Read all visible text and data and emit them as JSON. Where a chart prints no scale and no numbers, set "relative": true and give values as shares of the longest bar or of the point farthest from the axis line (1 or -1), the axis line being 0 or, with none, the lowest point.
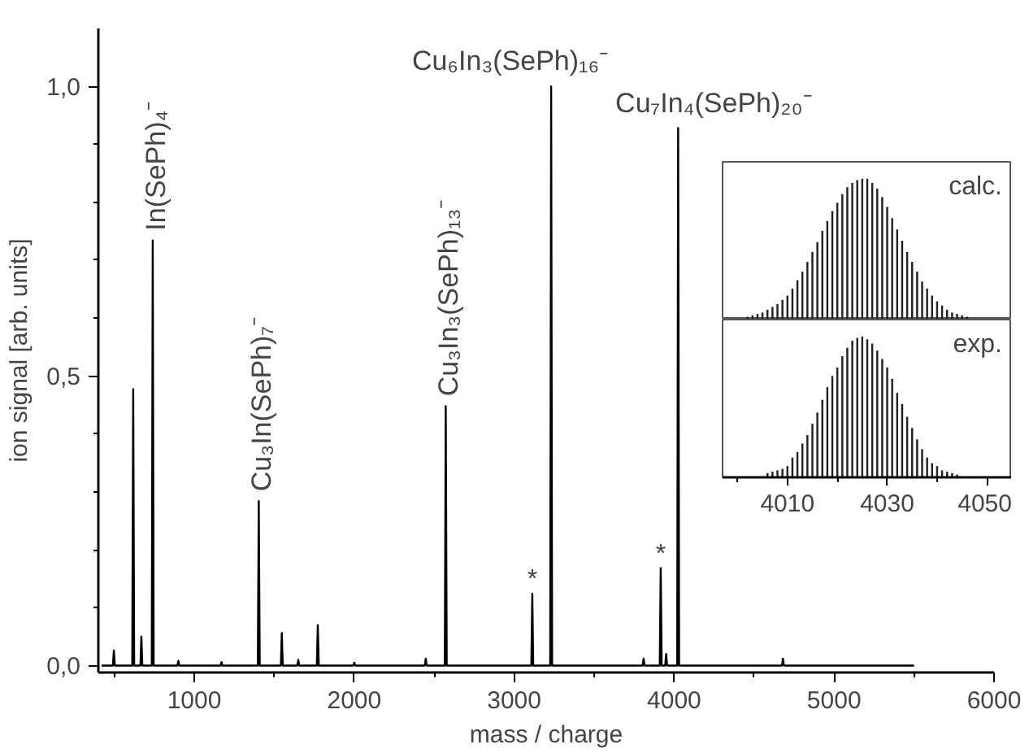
{
  "chart_data": [
    {
      "type": "line",
      "xlabel": "mass / charge",
      "ylabel": "ion signal [arb. units]",
      "xlim": [
        400,
        6000
      ],
      "ylim": [
        -0.012,
        1.1
      ],
      "xticks": [
        1000,
        2000,
        3000,
        4000,
        5000,
        6000,
        {
          "value": 500,
          "label": null
        },
        {
          "value": 1500,
          "label": null
        },
        {
          "value": 2500,
          "label": null
        },
        {
          "value": 3500,
          "label": null
        },
        {
          "value": 4500,
          "label": null
        },
        {
          "value": 5500,
          "label": null
        }
      ],
      "yticks": [
        {
          "value": 0,
          "label": "0,0"
        },
        {
          "value": 0.5,
          "label": "0,5"
        },
        {
          "value": 1,
          "label": "1,0"
        },
        {
          "value": 0.1,
          "label": null
        },
        {
          "value": 0.2,
          "label": null
        },
        {
          "value": 0.3,
          "label": null
        },
        {
          "value": 0.4,
          "label": null
        },
        {
          "value": 0.6,
          "label": null
        },
        {
          "value": 0.7,
          "label": null
        },
        {
          "value": 0.8,
          "label": null
        },
        {
          "value": 0.9,
          "label": null
        }
      ],
      "series": [
        {
          "color": "#000000",
          "x": [
            420,
            491,
            497,
            503,
            612,
            618,
            624,
            663,
            669,
            675,
            734,
            740,
            746,
            894,
            900,
            906,
            1164,
            1170,
            1176,
            1397,
            1403,
            1409,
            1541,
            1547,
            1553,
            1644,
            1650,
            1656,
            1766,
            1772,
            1778,
            1994,
            2000,
            2006,
            2441,
            2447,
            2453,
            2566,
            2572,
            2578,
            3107,
            3113,
            3119,
            3225,
            3231,
            3237,
            3803,
            3809,
            3815,
            3910,
            3916,
            3922,
            3944,
            3950,
            3956,
            4019,
            4025,
            4031,
            4674,
            4680,
            4686,
            5500
          ],
          "values": [
            0,
            0,
            0.026,
            0,
            0,
            0.477,
            0,
            0,
            0.05,
            0,
            0,
            0.734,
            0,
            0,
            0.008,
            0,
            0,
            0.006,
            0,
            0,
            0.284,
            0,
            0,
            0.056,
            0,
            0,
            0.01,
            0,
            0,
            0.07,
            0,
            0,
            0.005,
            0,
            0,
            0.012,
            0,
            0,
            0.448,
            0,
            0,
            0.124,
            0,
            0,
            1.0,
            0,
            0,
            0.012,
            0,
            0,
            0.168,
            0,
            0,
            0.02,
            0,
            0,
            0.928,
            0,
            0,
            0.012,
            0,
            0
          ]
        }
      ],
      "annotations": [
        {
          "text": "In(SePh)₄⁻",
          "x": 740,
          "y": 0.734
        },
        {
          "text": "Cu₃In(SePh)₇⁻",
          "x": 1403,
          "y": 0.284
        },
        {
          "text": "Cu₃In₃(SePh)₁₃⁻",
          "x": 2572,
          "y": 0.448
        },
        {
          "text": "Cu₆In₃(SePh)₁₆⁻",
          "x": 3231,
          "y": 1.0
        },
        {
          "text": "Cu₇In₄(SePh)₂₀⁻",
          "x": 4025,
          "y": 0.928
        },
        {
          "text": "*",
          "x": 3113,
          "y": 0.124
        },
        {
          "text": "*",
          "x": 3916,
          "y": 0.168
        }
      ],
      "grid": false
    },
    {
      "type": "bar",
      "relative": true,
      "xlim": [
        3997,
        4055
      ],
      "tick_labels": false,
      "annotations": [
        "calc."
      ],
      "series": [
        {
          "color": "#222222",
          "x": [
            4002,
            4003,
            4004,
            4005,
            4006,
            4007,
            4008,
            4009,
            4010,
            4011,
            4012,
            4013,
            4014,
            4015,
            4016,
            4017,
            4018,
            4019,
            4020,
            4021,
            4022,
            4023,
            4024,
            4025,
            4026,
            4027,
            4028,
            4029,
            4030,
            4031,
            4032,
            4033,
            4034,
            4035,
            4036,
            4037,
            4038,
            4039,
            4040,
            4041,
            4042,
            4043,
            4044,
            4045,
            4046
          ],
          "values": [
            0.02,
            0.03,
            0.04,
            0.05,
            0.07,
            0.09,
            0.11,
            0.14,
            0.17,
            0.22,
            0.28,
            0.34,
            0.41,
            0.48,
            0.55,
            0.63,
            0.7,
            0.77,
            0.83,
            0.89,
            0.94,
            0.97,
            0.99,
            1.0,
            1.0,
            0.97,
            0.93,
            0.87,
            0.8,
            0.72,
            0.64,
            0.56,
            0.48,
            0.41,
            0.34,
            0.27,
            0.22,
            0.17,
            0.13,
            0.1,
            0.07,
            0.05,
            0.04,
            0.03,
            0.02
          ]
        }
      ]
    },
    {
      "type": "bar",
      "relative": true,
      "xlim": [
        3997,
        4055
      ],
      "tick_labels": "x",
      "annotations": [
        "exp."
      ],
      "xticks": [
        4010,
        4030,
        4050,
        {
          "value": 4000,
          "label": null
        },
        {
          "value": 4020,
          "label": null
        },
        {
          "value": 4040,
          "label": null
        }
      ],
      "series": [
        {
          "color": "#222222",
          "x": [
            4006,
            4007,
            4008,
            4009,
            4010,
            4011,
            4012,
            4013,
            4014,
            4015,
            4016,
            4017,
            4018,
            4019,
            4020,
            4021,
            4022,
            4023,
            4024,
            4025,
            4026,
            4027,
            4028,
            4029,
            4030,
            4031,
            4032,
            4033,
            4034,
            4035,
            4036,
            4037,
            4038,
            4039,
            4040,
            4041,
            4042,
            4043,
            4044
          ],
          "values": [
            0.03,
            0.04,
            0.05,
            0.06,
            0.08,
            0.14,
            0.18,
            0.24,
            0.3,
            0.38,
            0.46,
            0.55,
            0.64,
            0.72,
            0.78,
            0.86,
            0.92,
            0.97,
            0.99,
            1.0,
            0.98,
            0.95,
            0.9,
            0.84,
            0.78,
            0.7,
            0.6,
            0.52,
            0.43,
            0.35,
            0.27,
            0.2,
            0.14,
            0.1,
            0.08,
            0.05,
            0.04,
            0.03,
            0.02
          ]
        }
      ]
    }
  ]
}
